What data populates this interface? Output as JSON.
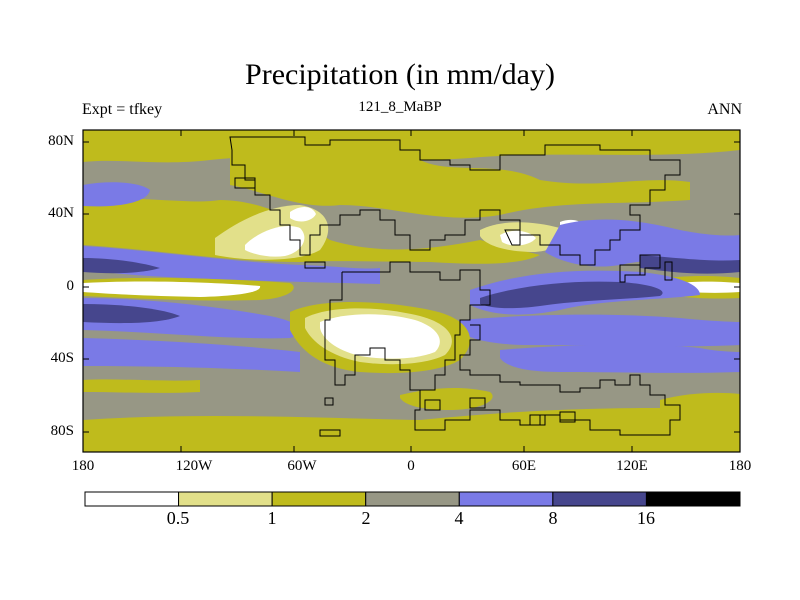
{
  "map": {
    "title": "Precipitation (in mm/day)",
    "left_label": "Expt = tfkey",
    "center_label": "121_8_MaBP",
    "right_label": "ANN",
    "lat_labels": [
      "80N",
      "40N",
      "0",
      "40S",
      "80S"
    ],
    "lon_labels": [
      "180",
      "120W",
      "60W",
      "0",
      "60E",
      "120E",
      "180"
    ]
  },
  "colorbar": {
    "colors": [
      "#ffffff",
      "#e2e08a",
      "#bfbb1c",
      "#979785",
      "#7a7ae6",
      "#46468d",
      "#000000"
    ],
    "labels": [
      "0.5",
      "1",
      "2",
      "4",
      "8",
      "16"
    ]
  }
}
